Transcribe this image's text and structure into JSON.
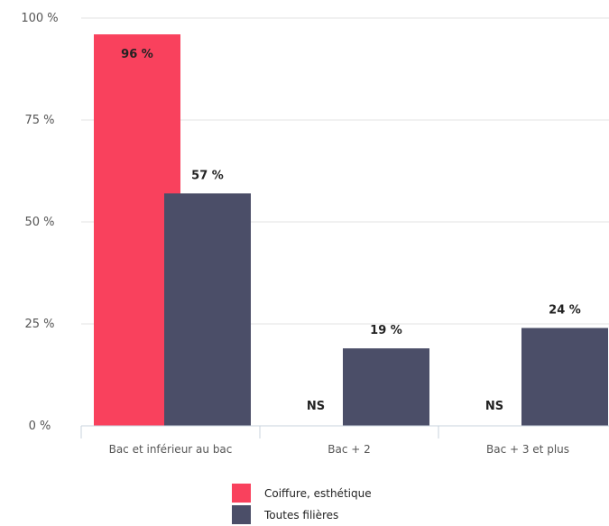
{
  "chart_data": {
    "type": "bar",
    "categories": [
      "Bac et inférieur au bac",
      "Bac + 2",
      "Bac + 3 et plus"
    ],
    "series": [
      {
        "name": "Coiffure, esthétique",
        "color": "#f9415d",
        "values": [
          96,
          null,
          null
        ],
        "labels": [
          "96 %",
          "NS",
          "NS"
        ]
      },
      {
        "name": "Toutes filières",
        "color": "#4b4e68",
        "values": [
          57,
          19,
          24
        ],
        "labels": [
          "57 %",
          "19 %",
          "24 %"
        ]
      }
    ],
    "yticks": [
      0,
      25,
      50,
      75,
      100
    ],
    "ytick_labels": [
      "0 %",
      "25 %",
      "50 %",
      "75 %",
      "100 %"
    ],
    "ylim": [
      0,
      100
    ],
    "grid": true,
    "legend_position": "bottom-center"
  }
}
